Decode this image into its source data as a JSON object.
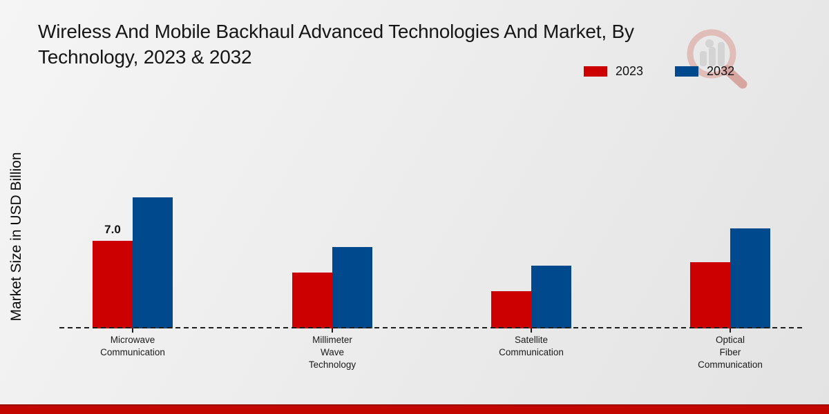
{
  "title": {
    "line1": "Wireless And Mobile Backhaul Advanced Technologies And Market, By",
    "line2": "Technology, 2023 & 2032"
  },
  "legend": {
    "items": [
      {
        "label": "2023",
        "color": "#cc0001"
      },
      {
        "label": "2032",
        "color": "#00498c"
      }
    ]
  },
  "y_axis": {
    "label": "Market Size in USD Billion"
  },
  "colors": {
    "series_2023": "#cc0001",
    "series_2032": "#00498c",
    "footer_bar": "#c40601",
    "footer_edge": "#9c0a02",
    "axis": "#1c1c1c"
  },
  "watermark_icon": "magnifier-bar-chart-logo",
  "chart_data": {
    "type": "bar",
    "title": "Wireless And Mobile Backhaul Advanced Technologies And Market, By Technology, 2023 & 2032",
    "xlabel": "",
    "ylabel": "Market Size in USD Billion",
    "categories": [
      "Microwave Communication",
      "Millimeter Wave Technology",
      "Satellite Communication",
      "Optical Fiber Communication"
    ],
    "category_lines": [
      [
        "Microwave",
        "Communication"
      ],
      [
        "Millimeter",
        "Wave",
        "Technology"
      ],
      [
        "Satellite",
        "Communication"
      ],
      [
        "Optical",
        "Fiber",
        "Communication"
      ]
    ],
    "series": [
      {
        "name": "2023",
        "color": "#cc0001",
        "values": [
          7.0,
          4.5,
          3.0,
          5.3
        ],
        "data_labels": [
          "7.0",
          "",
          "",
          ""
        ]
      },
      {
        "name": "2032",
        "color": "#00498c",
        "values": [
          10.5,
          6.5,
          5.0,
          8.0
        ],
        "data_labels": [
          "",
          "",
          "",
          ""
        ]
      }
    ],
    "ylim": [
      0,
      11
    ],
    "grid": false,
    "legend_position": "top-right",
    "baseline_style": "dashed"
  }
}
